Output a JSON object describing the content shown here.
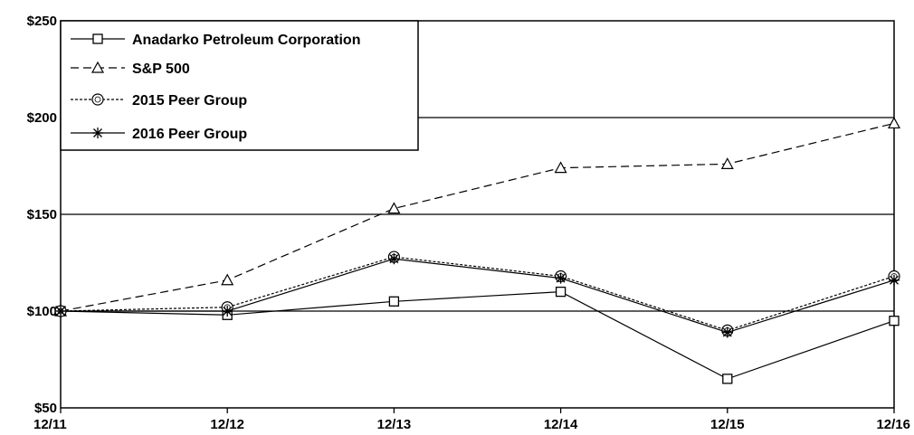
{
  "chart_data": {
    "type": "line",
    "x": [
      "12/11",
      "12/12",
      "12/13",
      "12/14",
      "12/15",
      "12/16"
    ],
    "ylim": [
      50,
      250
    ],
    "y_ticks": [
      {
        "value": 250,
        "label": "$250"
      },
      {
        "value": 200,
        "label": "$200"
      },
      {
        "value": 150,
        "label": "$150"
      },
      {
        "value": 100,
        "label": "$100"
      },
      {
        "value": 50,
        "label": "$50"
      }
    ],
    "gridlines_at": [
      100,
      150,
      200
    ],
    "legend_position": "top-left",
    "series": [
      {
        "name": "Anadarko Petroleum Corporation",
        "marker": "square",
        "dash": "solid",
        "values": [
          100,
          98,
          105,
          110,
          65,
          95
        ]
      },
      {
        "name": "S&P 500",
        "marker": "triangle",
        "dash": "dashed",
        "values": [
          100,
          116,
          153,
          174,
          176,
          197
        ]
      },
      {
        "name": "2015 Peer Group",
        "marker": "circle",
        "dash": "dotted",
        "values": [
          100,
          102,
          128,
          118,
          90,
          118
        ]
      },
      {
        "name": "2016 Peer Group",
        "marker": "asterisk",
        "dash": "solid",
        "values": [
          100,
          100,
          127,
          117,
          89,
          116
        ]
      }
    ]
  }
}
